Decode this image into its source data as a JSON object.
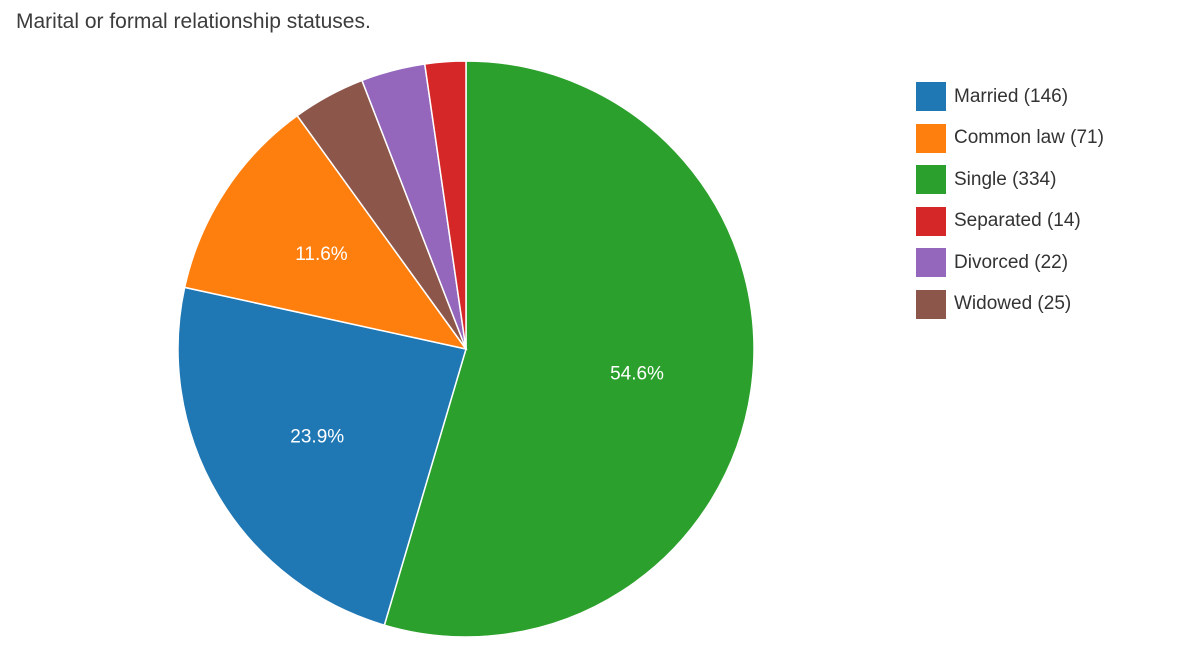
{
  "chart_data": {
    "type": "pie",
    "title": "Marital or formal relationship statuses.",
    "slices": [
      {
        "name": "Single",
        "value": 334,
        "color": "#2ca02c",
        "label": "54.6%"
      },
      {
        "name": "Married",
        "value": 146,
        "color": "#1f77b4",
        "label": "23.9%"
      },
      {
        "name": "Common law",
        "value": 71,
        "color": "#ff7f0e",
        "label": "11.6%"
      },
      {
        "name": "Widowed",
        "value": 25,
        "color": "#8c564b",
        "label": ""
      },
      {
        "name": "Divorced",
        "value": 22,
        "color": "#9467bd",
        "label": ""
      },
      {
        "name": "Separated",
        "value": 14,
        "color": "#d62728",
        "label": ""
      }
    ],
    "legend": {
      "position": "right",
      "items": [
        {
          "label": "Married (146)",
          "color": "#1f77b4"
        },
        {
          "label": "Common law (71)",
          "color": "#ff7f0e"
        },
        {
          "label": "Single (334)",
          "color": "#2ca02c"
        },
        {
          "label": "Separated (14)",
          "color": "#d62728"
        },
        {
          "label": "Divorced (22)",
          "color": "#9467bd"
        },
        {
          "label": "Widowed (25)",
          "color": "#8c564b"
        }
      ]
    }
  }
}
